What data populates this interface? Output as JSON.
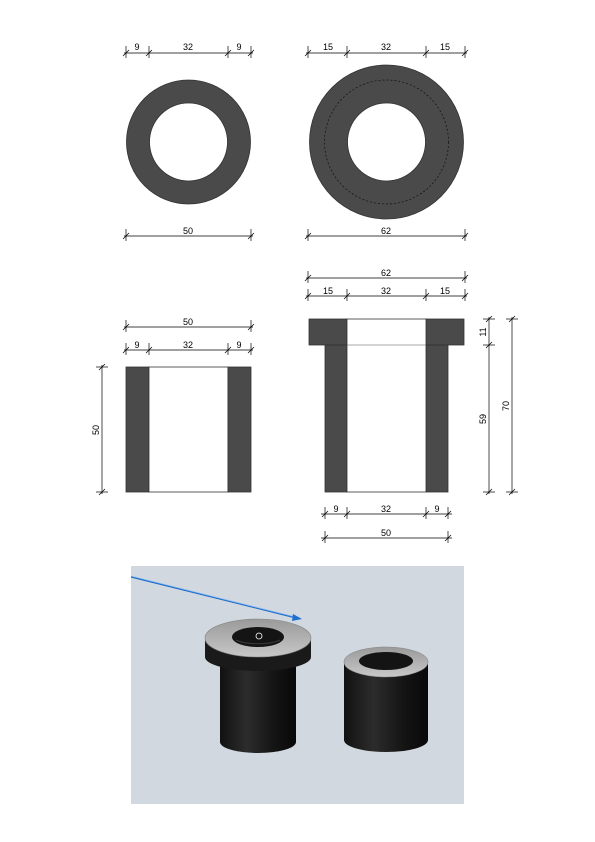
{
  "colors": {
    "solid": "#4a4a4a",
    "dim_line": "#000000",
    "render_bg": "#d1d8df",
    "pick_line": "#1e6fd0"
  },
  "top_left_ring": {
    "dims_top": [
      "9",
      "32",
      "9"
    ],
    "dim_bottom": "50"
  },
  "top_right_ring": {
    "dims_top": [
      "15",
      "32",
      "15"
    ],
    "dim_bottom": "62"
  },
  "section_left": {
    "dim_overall": "50",
    "dims_split": [
      "9",
      "32",
      "9"
    ],
    "dim_height": "50"
  },
  "section_right": {
    "dim_overall": "62",
    "dims_split_top": [
      "15",
      "32",
      "15"
    ],
    "dims_split_bottom": [
      "9",
      "32",
      "9"
    ],
    "dim_bottom_overall": "50",
    "dim_flange": "11",
    "dim_body": "59",
    "dim_total": "70"
  },
  "render_view": {
    "objects": [
      "flanged-bushing",
      "plain-bushing"
    ]
  }
}
